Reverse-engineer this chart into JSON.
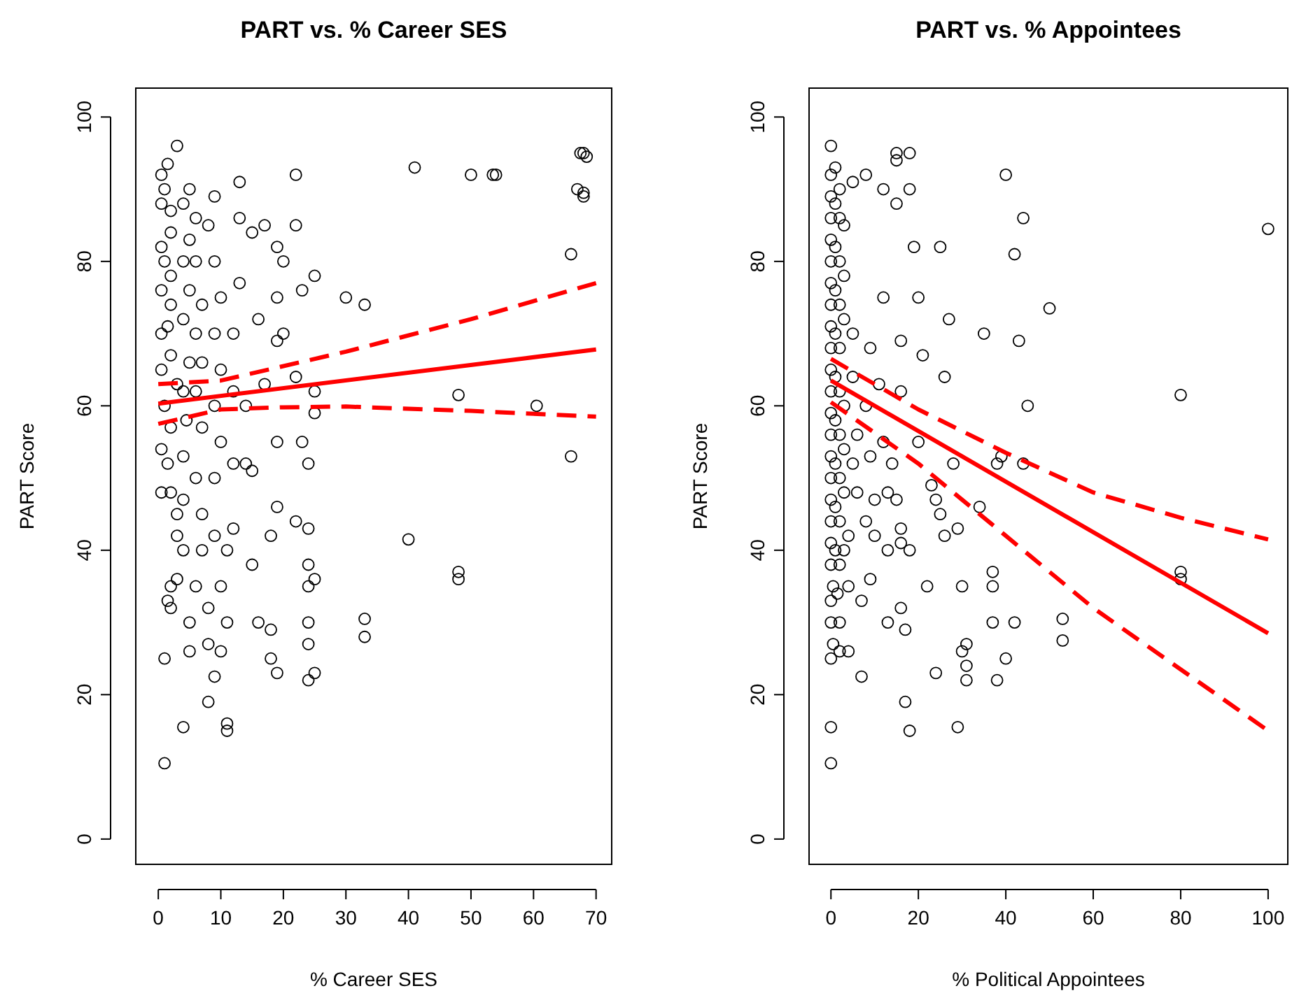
{
  "chart_data": [
    {
      "type": "scatter",
      "title": "PART vs. % Career SES",
      "xlabel": "% Career SES",
      "ylabel": "PART Score",
      "xlim": [
        -3.6,
        72.5
      ],
      "ylim": [
        -3.5,
        104
      ],
      "xticks": [
        0,
        10,
        20,
        30,
        40,
        50,
        60,
        70
      ],
      "yticks": [
        0,
        20,
        40,
        60,
        80,
        100
      ],
      "marker": "circle",
      "grid": false,
      "series": [
        {
          "color": "#000000",
          "x": [
            1,
            1,
            1.5,
            2,
            3,
            0.5,
            0.5,
            1,
            0.5,
            0.5,
            0.5,
            0.5,
            0.5,
            0.5,
            1.5,
            3,
            1,
            2,
            2,
            1,
            2,
            2,
            1.5,
            2,
            3,
            2,
            1.5,
            2,
            3,
            4,
            3,
            2,
            4,
            5,
            5,
            4,
            4,
            4.5,
            4,
            5,
            4,
            5,
            4,
            5,
            4,
            5,
            6,
            6,
            7,
            6,
            7,
            6,
            7,
            6,
            7,
            7,
            6,
            8,
            8,
            8,
            9,
            10,
            10,
            9,
            9,
            10,
            9,
            10,
            9,
            10,
            9,
            8,
            9,
            11,
            11,
            11,
            11,
            12,
            12,
            12,
            12,
            13,
            13,
            13,
            14,
            14,
            15,
            15,
            15,
            16,
            16,
            17,
            17,
            18,
            18,
            18,
            19,
            19,
            19,
            19,
            20,
            19,
            19,
            20,
            22,
            22,
            22,
            22,
            23,
            23,
            24,
            24,
            24,
            24,
            24,
            24,
            25,
            25,
            25,
            24,
            25,
            25,
            30,
            33,
            33,
            33,
            40,
            41,
            48,
            48,
            48,
            50,
            54,
            53.5,
            60.5,
            66,
            66,
            67,
            67.5,
            68,
            68,
            68,
            68.5
          ],
          "values": [
            10.5,
            25,
            33,
            35,
            42,
            48,
            54,
            60,
            65,
            70,
            76,
            82,
            88,
            92,
            93.5,
            96,
            90,
            87,
            84,
            80,
            78,
            74,
            71,
            67,
            63,
            57,
            52,
            48,
            45,
            40,
            36,
            32,
            15.5,
            26,
            30,
            47,
            53,
            58,
            62,
            66,
            72,
            76,
            80,
            83,
            88,
            90,
            86,
            80,
            74,
            70,
            66,
            62,
            57,
            50,
            45,
            40,
            35,
            32,
            27,
            19,
            22.5,
            26,
            35,
            42,
            50,
            55,
            60,
            65,
            70,
            75,
            80,
            85,
            89,
            15,
            16,
            30,
            40,
            43,
            52,
            62,
            70,
            77,
            86,
            91,
            52,
            60,
            38,
            51,
            84,
            30,
            72,
            63,
            85,
            29,
            42,
            25,
            46,
            23,
            55,
            69,
            70,
            75,
            82,
            80,
            85,
            92,
            64,
            44,
            76,
            55,
            22,
            30,
            35,
            38,
            43,
            52,
            59,
            62,
            78,
            27,
            23,
            36,
            75,
            74,
            30.5,
            28,
            41.5,
            93,
            37,
            36,
            61.5,
            92,
            92,
            92,
            60,
            53,
            81,
            90,
            95,
            95,
            89,
            89.5,
            94.5
          ]
        },
        {
          "type": "line",
          "marker": "none",
          "color": "#ff0000",
          "line_style": "solid",
          "x": [
            0,
            70
          ],
          "values": [
            60.3,
            67.8
          ]
        },
        {
          "type": "line",
          "marker": "none",
          "color": "#ff0000",
          "line_style": "dashed",
          "x": [
            0,
            10,
            30,
            50,
            70
          ],
          "values": [
            63,
            63.5,
            67.5,
            72,
            77
          ]
        },
        {
          "type": "line",
          "marker": "none",
          "color": "#ff0000",
          "line_style": "dashed",
          "x": [
            0,
            10,
            20,
            30,
            50,
            70
          ],
          "values": [
            57.5,
            59.5,
            59.8,
            59.9,
            59.3,
            58.5
          ]
        }
      ]
    },
    {
      "type": "scatter",
      "title": "PART vs. % Appointees",
      "xlabel": "% Political Appointees",
      "ylabel": "PART Score",
      "xlim": [
        -5,
        104.5
      ],
      "ylim": [
        -3.5,
        104
      ],
      "xticks": [
        0,
        20,
        40,
        60,
        80,
        100
      ],
      "yticks": [
        0,
        20,
        40,
        60,
        80,
        100
      ],
      "marker": "circle",
      "grid": false,
      "series": [
        {
          "color": "#000000",
          "x": [
            0,
            0,
            0,
            0.5,
            0,
            0,
            0.5,
            0,
            0,
            0,
            0,
            0,
            0,
            0,
            0,
            0,
            0,
            0,
            0,
            0,
            0,
            0,
            0,
            0,
            0,
            0,
            0,
            1,
            1,
            1,
            1,
            1,
            1,
            1,
            1,
            1,
            1,
            1.5,
            2,
            2,
            2,
            2,
            2,
            2,
            2,
            2,
            2,
            2,
            2,
            2,
            3,
            3,
            3,
            3,
            3,
            3,
            3,
            4,
            4,
            4,
            5,
            5,
            5,
            5,
            6,
            6,
            7,
            7,
            8,
            8,
            8,
            9,
            9,
            9,
            10,
            10,
            11,
            12,
            12,
            12,
            13,
            13,
            13,
            14,
            15,
            15,
            15,
            15,
            16,
            16,
            16,
            16,
            16,
            17,
            17,
            18,
            18,
            18,
            18,
            19,
            20,
            20,
            21,
            22,
            23,
            24,
            24,
            25,
            25,
            26,
            26,
            27,
            28,
            29,
            29,
            30,
            30,
            31,
            31,
            31,
            34,
            35,
            37,
            37,
            37,
            38,
            38,
            39,
            40,
            40,
            42,
            42,
            43,
            44,
            44,
            45,
            50,
            53,
            53,
            80,
            80,
            80,
            100
          ],
          "values": [
            10.5,
            15.5,
            25,
            27,
            30,
            33,
            35,
            38,
            41,
            44,
            47,
            50,
            53,
            56,
            59,
            62,
            65,
            68,
            71,
            74,
            77,
            80,
            83,
            86,
            89,
            92,
            96,
            93,
            88,
            82,
            76,
            70,
            64,
            58,
            52,
            46,
            40,
            34,
            30,
            26,
            38,
            44,
            50,
            56,
            62,
            68,
            74,
            80,
            86,
            90,
            85,
            78,
            72,
            60,
            54,
            48,
            40,
            35,
            26,
            42,
            52,
            64,
            70,
            91,
            48,
            56,
            33,
            22.5,
            44,
            60,
            92,
            36,
            53,
            68,
            47,
            42,
            63,
            75,
            90,
            55,
            48,
            40,
            30,
            52,
            47,
            95,
            94,
            88,
            69,
            62,
            43,
            32,
            41,
            19,
            29,
            15,
            40,
            95,
            90,
            82,
            75,
            55,
            67,
            35,
            49,
            23,
            47,
            82,
            45,
            42,
            64,
            72,
            52,
            15.5,
            43,
            26,
            35,
            24,
            22,
            27,
            46,
            70,
            35,
            30,
            37,
            22,
            52,
            53,
            92,
            25,
            30,
            81,
            69,
            86,
            52,
            60,
            73.5,
            30.5,
            27.5,
            37,
            36,
            61.5,
            84.5
          ]
        },
        {
          "type": "line",
          "marker": "none",
          "color": "#ff0000",
          "line_style": "solid",
          "x": [
            0,
            100
          ],
          "values": [
            63.5,
            28.5
          ]
        },
        {
          "type": "line",
          "marker": "none",
          "color": "#ff0000",
          "line_style": "dashed",
          "x": [
            0,
            20,
            40,
            60,
            80,
            100
          ],
          "values": [
            66.5,
            59.5,
            53.5,
            48,
            44.5,
            41.5
          ]
        },
        {
          "type": "line",
          "marker": "none",
          "color": "#ff0000",
          "line_style": "dashed",
          "x": [
            0,
            20,
            40,
            60,
            80,
            100
          ],
          "values": [
            60.5,
            52,
            42,
            32,
            23.5,
            15
          ]
        }
      ]
    }
  ]
}
